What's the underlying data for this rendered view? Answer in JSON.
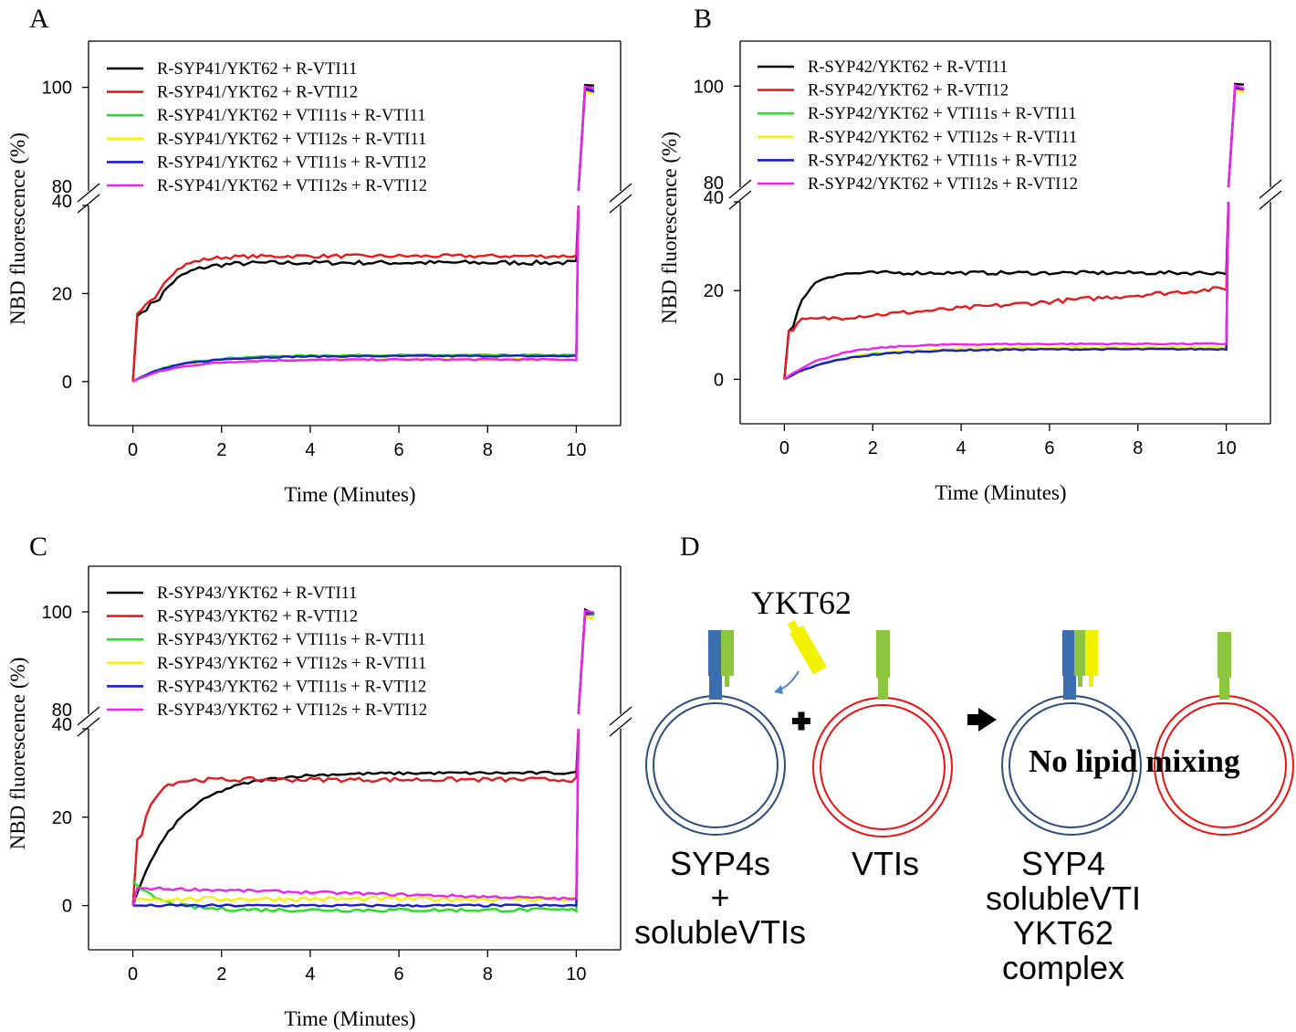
{
  "colors": {
    "black": "#000000",
    "red": "#e41a1c",
    "green": "#22e022",
    "yellow": "#f2f20a",
    "blue": "#1a1ad4",
    "magenta": "#ee22ee",
    "membrane_blue": "#2e4d7a",
    "membrane_red": "#ee1111",
    "syp_blue": "#3d6fb0",
    "vti_green": "#8cc63f",
    "ykt_yellow": "#f2f200"
  },
  "chart_data": [
    {
      "panel_label": "A",
      "type": "line",
      "xlabel": "Time (Minutes)",
      "ylabel": "NBD fluorescence (%)",
      "xlim": [
        -1,
        11
      ],
      "xticks": [
        0,
        2,
        4,
        6,
        8,
        10
      ],
      "ylim_lower": [
        -10,
        40
      ],
      "yticks_lower": [
        0,
        20,
        40
      ],
      "ylim_upper": [
        80,
        110
      ],
      "yticks_upper": [
        80,
        100
      ],
      "broken_axis": true,
      "series": [
        {
          "name": "R-SYP41/YKT62 + R-VTI11",
          "color": "black",
          "model": "exp",
          "plateau": 27,
          "tau": 0.5,
          "init": 14,
          "noise": 0.5
        },
        {
          "name": "R-SYP41/YKT62 + R-VTI12",
          "color": "red",
          "model": "exp",
          "plateau": 28.5,
          "tau": 0.45,
          "init": 14.5,
          "noise": 0.4
        },
        {
          "name": "R-SYP41/YKT62 + VTI11s + R-VTI11",
          "color": "green",
          "model": "exp",
          "plateau": 6,
          "tau": 1.0,
          "noise": 0.15
        },
        {
          "name": "R-SYP41/YKT62 + VTI12s + R-VTI11",
          "color": "yellow",
          "model": "exp",
          "plateau": 5,
          "tau": 1.0,
          "noise": 0.15
        },
        {
          "name": "R-SYP41/YKT62 + VTI11s + R-VTI12",
          "color": "blue",
          "model": "exp",
          "plateau": 5.8,
          "tau": 1.0,
          "noise": 0.15
        },
        {
          "name": "R-SYP41/YKT62 + VTI12s + R-VTI12",
          "color": "magenta",
          "model": "exp",
          "plateau": 5,
          "tau": 1.0,
          "noise": 0.15
        }
      ]
    },
    {
      "panel_label": "B",
      "type": "line",
      "xlabel": "Time (Minutes)",
      "ylabel": "NBD fluorescence (%)",
      "xlim": [
        -1,
        11
      ],
      "xticks": [
        0,
        2,
        4,
        6,
        8,
        10
      ],
      "ylim_lower": [
        -10,
        40
      ],
      "yticks_lower": [
        0,
        20,
        40
      ],
      "ylim_upper": [
        80,
        110
      ],
      "yticks_upper": [
        80,
        100
      ],
      "broken_axis": true,
      "series": [
        {
          "name": "R-SYP42/YKT62 + R-VTI11",
          "color": "black",
          "model": "exp",
          "plateau": 24,
          "tau": 0.3,
          "init": 10,
          "noise": 0.4
        },
        {
          "name": "R-SYP42/YKT62 + R-VTI12",
          "color": "red",
          "model": "lin",
          "start": 13,
          "end": 20.5,
          "init": 11,
          "noise": 0.5
        },
        {
          "name": "R-SYP42/YKT62 + VTI11s + R-VTI11",
          "color": "green",
          "model": "exp",
          "plateau": 7,
          "tau": 1.2,
          "noise": 0.15
        },
        {
          "name": "R-SYP42/YKT62 + VTI12s + R-VTI11",
          "color": "yellow",
          "model": "exp",
          "plateau": 7.2,
          "tau": 1.3,
          "noise": 0.15
        },
        {
          "name": "R-SYP42/YKT62 + VTI11s + R-VTI12",
          "color": "blue",
          "model": "exp",
          "plateau": 6.8,
          "tau": 1.2,
          "noise": 0.15
        },
        {
          "name": "R-SYP42/YKT62 + VTI12s + R-VTI12",
          "color": "magenta",
          "model": "exp",
          "plateau": 8,
          "tau": 1.0,
          "noise": 0.15
        }
      ]
    },
    {
      "panel_label": "C",
      "type": "line",
      "xlabel": "Time (Minutes)",
      "ylabel": "NBD fluorescence (%)",
      "xlim": [
        -1,
        11
      ],
      "xticks": [
        0,
        2,
        4,
        6,
        8,
        10
      ],
      "ylim_lower": [
        -10,
        40
      ],
      "yticks_lower": [
        0,
        20,
        40
      ],
      "ylim_upper": [
        80,
        110
      ],
      "yticks_upper": [
        80,
        100
      ],
      "broken_axis": true,
      "series": [
        {
          "name": "R-SYP43/YKT62 + R-VTI11",
          "color": "black",
          "model": "exp",
          "plateau": 30,
          "tau": 1.0,
          "noise": 0.3
        },
        {
          "name": "R-SYP43/YKT62 + R-VTI12",
          "color": "red",
          "model": "exp",
          "plateau": 28.5,
          "tau": 0.25,
          "init": 14,
          "noise": 0.5
        },
        {
          "name": "R-SYP43/YKT62 + VTI11s + R-VTI11",
          "color": "green",
          "model": "decay",
          "start": 5.5,
          "end": -1,
          "tau": 0.6,
          "noise": 0.4
        },
        {
          "name": "R-SYP43/YKT62 + VTI12s + R-VTI11",
          "color": "yellow",
          "model": "flat",
          "level": 1.5,
          "noise": 0.5
        },
        {
          "name": "R-SYP43/YKT62 + VTI11s + R-VTI12",
          "color": "blue",
          "model": "flat",
          "level": 0,
          "noise": 0.25
        },
        {
          "name": "R-SYP43/YKT62 + VTI12s + R-VTI12",
          "color": "magenta",
          "model": "lin",
          "start": 4,
          "end": 1.5,
          "noise": 0.3
        }
      ]
    }
  ],
  "diagram": {
    "panel_label": "D",
    "ykt_label": "YKT62",
    "left_caption": [
      "SYP4s",
      "+",
      "solubleVTIs"
    ],
    "middle_caption": "VTIs",
    "right_caption": [
      "SYP4",
      "solubleVTI",
      "YKT62",
      "complex"
    ],
    "result_text": "No lipid mixing",
    "plus_icon": "plus-icon",
    "arrow_icon": "arrow-right-icon"
  }
}
